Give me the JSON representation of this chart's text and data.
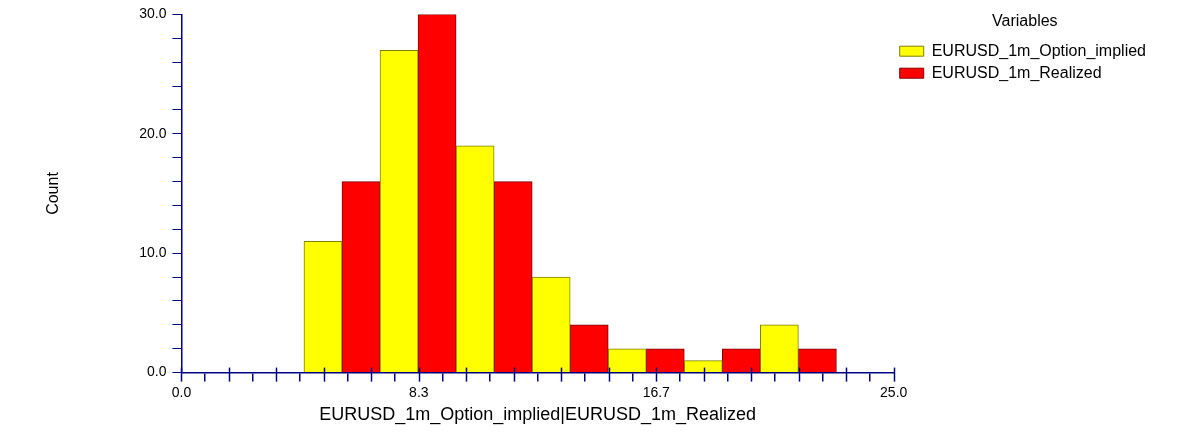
{
  "chart_data": {
    "type": "histogram",
    "xlabel": "EURUSD_1m_Option_implied|EURUSD_1m_Realized",
    "ylabel": "Count",
    "legend_title": "Variables",
    "bins": [
      4.3,
      6.97,
      9.64,
      12.31,
      14.98,
      17.65,
      20.32,
      22.99
    ],
    "series": [
      {
        "name": "EURUSD_1m_Option_implied",
        "color": "#ffff00",
        "values": [
          11,
          27,
          19,
          8,
          2,
          1,
          4
        ]
      },
      {
        "name": "EURUSD_1m_Realized",
        "color": "#ff0000",
        "values": [
          16,
          30,
          16,
          4,
          2,
          2,
          2
        ]
      }
    ],
    "xlim": [
      0,
      25
    ],
    "xticks": [
      {
        "value": 0,
        "label": "0.0"
      },
      {
        "value": 1.667,
        "label": null
      },
      {
        "value": 3.333,
        "label": null
      },
      {
        "value": 5,
        "label": null
      },
      {
        "value": 6.667,
        "label": null
      },
      {
        "value": 8.333,
        "label": "8.3"
      },
      {
        "value": 10,
        "label": null
      },
      {
        "value": 11.667,
        "label": null
      },
      {
        "value": 13.333,
        "label": null
      },
      {
        "value": 15,
        "label": null
      },
      {
        "value": 16.667,
        "label": "16.7"
      },
      {
        "value": 18.333,
        "label": null
      },
      {
        "value": 20,
        "label": null
      },
      {
        "value": 21.667,
        "label": null
      },
      {
        "value": 23.333,
        "label": null
      },
      {
        "value": 25,
        "label": "25.0"
      }
    ],
    "ylim": [
      0,
      30
    ],
    "yticks": [
      {
        "value": 0,
        "label": "0.0"
      },
      {
        "value": 2,
        "label": null
      },
      {
        "value": 4,
        "label": null
      },
      {
        "value": 6,
        "label": null
      },
      {
        "value": 8,
        "label": null
      },
      {
        "value": 10,
        "label": "10.0"
      },
      {
        "value": 12,
        "label": null
      },
      {
        "value": 14,
        "label": null
      },
      {
        "value": 16,
        "label": null
      },
      {
        "value": 18,
        "label": null
      },
      {
        "value": 20,
        "label": "20.0"
      },
      {
        "value": 22,
        "label": null
      },
      {
        "value": 24,
        "label": null
      },
      {
        "value": 26,
        "label": null
      },
      {
        "value": 28,
        "label": null
      },
      {
        "value": 30,
        "label": "30.0"
      }
    ],
    "grid": false,
    "legend": "top right"
  }
}
